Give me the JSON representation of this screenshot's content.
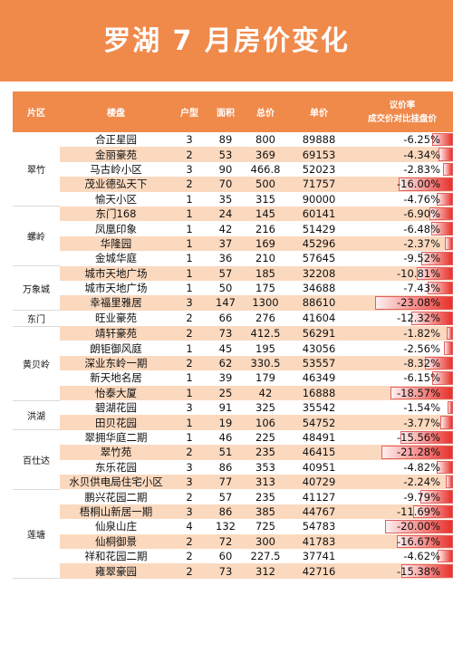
{
  "title": "罗湖 7 月房价变化",
  "headers": {
    "district": "片区",
    "estate": "楼盘",
    "layout": "户型",
    "area": "面积",
    "total": "总价",
    "unit_price": "单价",
    "rate_line1": "议价率",
    "rate_line2": "成交价对比挂盘价"
  },
  "colors": {
    "accent": "#f08a4b",
    "row_alt": "#fbd9bf",
    "bar": "#e8312b"
  },
  "groups": [
    {
      "district": "翠竹",
      "rows": [
        {
          "estate": "合正星园",
          "layout": "3",
          "area": "89",
          "total": "800",
          "unit_price": "89888",
          "rate": "-6.25%"
        },
        {
          "estate": "金丽豪苑",
          "layout": "2",
          "area": "53",
          "total": "369",
          "unit_price": "69153",
          "rate": "-4.34%"
        },
        {
          "estate": "马古岭小区",
          "layout": "3",
          "area": "90",
          "total": "466.8",
          "unit_price": "52023",
          "rate": "-2.83%"
        },
        {
          "estate": "茂业德弘天下",
          "layout": "2",
          "area": "70",
          "total": "500",
          "unit_price": "71757",
          "rate": "-16.00%"
        },
        {
          "estate": "愉天小区",
          "layout": "1",
          "area": "35",
          "total": "315",
          "unit_price": "90000",
          "rate": "-4.76%"
        }
      ]
    },
    {
      "district": "螺岭",
      "rows": [
        {
          "estate": "东门168",
          "layout": "1",
          "area": "24",
          "total": "145",
          "unit_price": "60141",
          "rate": "-6.90%"
        },
        {
          "estate": "凤凰印象",
          "layout": "1",
          "area": "42",
          "total": "216",
          "unit_price": "51429",
          "rate": "-6.48%"
        },
        {
          "estate": "华隆园",
          "layout": "1",
          "area": "37",
          "total": "169",
          "unit_price": "45296",
          "rate": "-2.37%"
        },
        {
          "estate": "金城华庭",
          "layout": "1",
          "area": "36",
          "total": "210",
          "unit_price": "57645",
          "rate": "-9.52%"
        }
      ]
    },
    {
      "district": "万象城",
      "rows": [
        {
          "estate": "城市天地广场",
          "layout": "1",
          "area": "57",
          "total": "185",
          "unit_price": "32208",
          "rate": "-10.81%"
        },
        {
          "estate": "城市天地广场",
          "layout": "1",
          "area": "50",
          "total": "175",
          "unit_price": "34688",
          "rate": "-7.43%"
        },
        {
          "estate": "幸福里雅居",
          "layout": "3",
          "area": "147",
          "total": "1300",
          "unit_price": "88610",
          "rate": "-23.08%"
        }
      ]
    },
    {
      "district": "东门",
      "rows": [
        {
          "estate": "旺业豪苑",
          "layout": "2",
          "area": "66",
          "total": "276",
          "unit_price": "41604",
          "rate": "-12.32%"
        }
      ]
    },
    {
      "district": "黄贝岭",
      "rows": [
        {
          "estate": "靖轩豪苑",
          "layout": "2",
          "area": "73",
          "total": "412.5",
          "unit_price": "56291",
          "rate": "-1.82%"
        },
        {
          "estate": "朗钜御风庭",
          "layout": "1",
          "area": "45",
          "total": "195",
          "unit_price": "43056",
          "rate": "-2.56%"
        },
        {
          "estate": "深业东岭一期",
          "layout": "2",
          "area": "62",
          "total": "330.5",
          "unit_price": "53557",
          "rate": "-8.32%"
        },
        {
          "estate": "新天地名居",
          "layout": "1",
          "area": "39",
          "total": "179",
          "unit_price": "46349",
          "rate": "-6.15%"
        },
        {
          "estate": "怡泰大厦",
          "layout": "1",
          "area": "25",
          "total": "42",
          "unit_price": "16888",
          "rate": "-18.57%"
        }
      ]
    },
    {
      "district": "洪湖",
      "rows": [
        {
          "estate": "碧湖花园",
          "layout": "3",
          "area": "91",
          "total": "325",
          "unit_price": "35542",
          "rate": "-1.54%"
        },
        {
          "estate": "田贝花园",
          "layout": "1",
          "area": "19",
          "total": "106",
          "unit_price": "54752",
          "rate": "-3.77%"
        }
      ]
    },
    {
      "district": "百仕达",
      "rows": [
        {
          "estate": "翠拥华庭二期",
          "layout": "1",
          "area": "46",
          "total": "225",
          "unit_price": "48491",
          "rate": "-15.56%"
        },
        {
          "estate": "翠竹苑",
          "layout": "2",
          "area": "51",
          "total": "235",
          "unit_price": "46415",
          "rate": "-21.28%"
        },
        {
          "estate": "东乐花园",
          "layout": "3",
          "area": "86",
          "total": "353",
          "unit_price": "40951",
          "rate": "-4.82%"
        },
        {
          "estate": "水贝供电局住宅小区",
          "layout": "3",
          "area": "77",
          "total": "313",
          "unit_price": "40729",
          "rate": "-2.24%"
        }
      ]
    },
    {
      "district": "莲塘",
      "rows": [
        {
          "estate": "鹏兴花园二期",
          "layout": "2",
          "area": "57",
          "total": "235",
          "unit_price": "41127",
          "rate": "-9.79%"
        },
        {
          "estate": "梧桐山新居一期",
          "layout": "3",
          "area": "86",
          "total": "385",
          "unit_price": "44767",
          "rate": "-11.69%"
        },
        {
          "estate": "仙泉山庄",
          "layout": "4",
          "area": "132",
          "total": "725",
          "unit_price": "54783",
          "rate": "-20.00%"
        },
        {
          "estate": "仙桐御景",
          "layout": "2",
          "area": "72",
          "total": "300",
          "unit_price": "41783",
          "rate": "-16.67%"
        },
        {
          "estate": "祥和花园二期",
          "layout": "2",
          "area": "60",
          "total": "227.5",
          "unit_price": "37741",
          "rate": "-4.62%"
        },
        {
          "estate": "雍翠豪园",
          "layout": "2",
          "area": "73",
          "total": "312",
          "unit_price": "42716",
          "rate": "-15.38%"
        }
      ]
    }
  ]
}
